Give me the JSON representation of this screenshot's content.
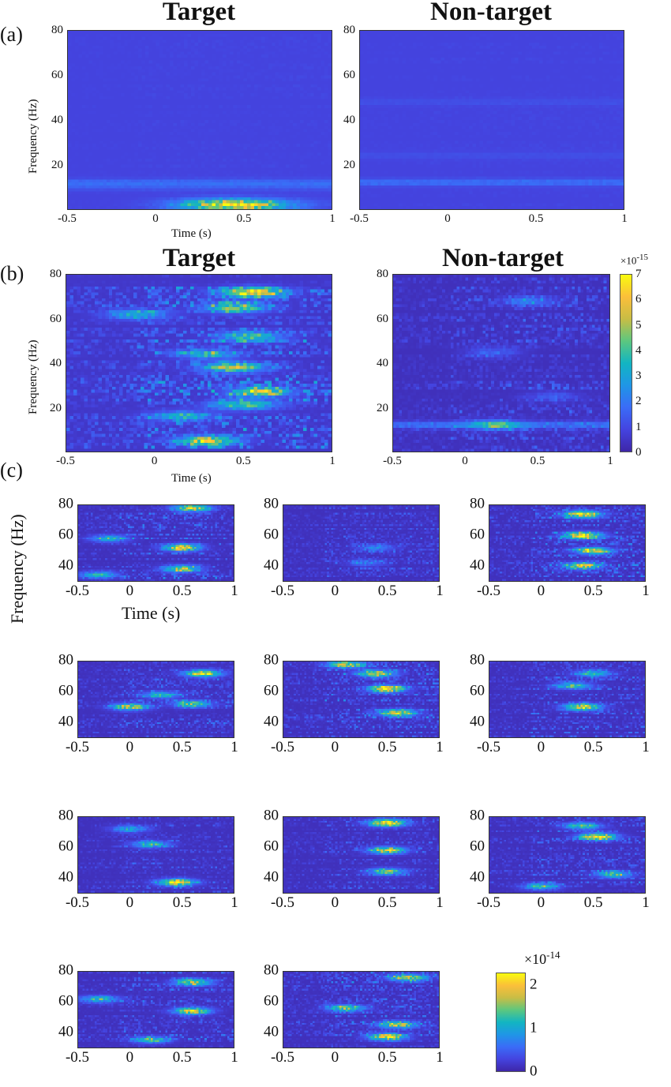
{
  "labels": {
    "a": "(a)",
    "b": "(b)",
    "c": "(c)",
    "freq": "Frequency (Hz)",
    "time": "Time (s)",
    "target": "Target",
    "nontarget": "Non-target"
  },
  "colors": {
    "parula": [
      "#3e26a8",
      "#4444e0",
      "#3a6cf7",
      "#1f96e6",
      "#12b5c2",
      "#5cc77f",
      "#c8bd45",
      "#fbbf3a",
      "#f9fb0e"
    ]
  },
  "chart_data": [
    {
      "id": "a-target",
      "type": "heatmap",
      "title": "Target",
      "xlabel": "Time (s)",
      "ylabel": "Frequency (Hz)",
      "xlim": [
        -0.5,
        1
      ],
      "ylim": [
        0,
        80
      ],
      "xticks": [
        "-0.5",
        "0",
        "0.5",
        "1"
      ],
      "yticks": [
        "20",
        "40",
        "60",
        "80"
      ],
      "clim": [
        0,
        1
      ],
      "base": 0.12,
      "noise": 0.02,
      "bands": [
        {
          "f": 12,
          "amp": 0.12
        },
        {
          "f": 10,
          "amp": 0.08
        }
      ],
      "peaks": [
        {
          "t": 0.45,
          "f": 2,
          "amp": 0.9,
          "tw": 0.3,
          "fw": 2.5
        }
      ]
    },
    {
      "id": "a-nontarget",
      "type": "heatmap",
      "title": "Non-target",
      "xlim": [
        -0.5,
        1
      ],
      "ylim": [
        0,
        80
      ],
      "xticks": [
        "-0.5",
        "0",
        "0.5",
        "1"
      ],
      "yticks": [
        "20",
        "40",
        "60",
        "80"
      ],
      "clim": [
        0,
        1
      ],
      "base": 0.12,
      "noise": 0.02,
      "bands": [
        {
          "f": 12,
          "amp": 0.14
        },
        {
          "f": 48,
          "amp": 0.04
        },
        {
          "f": 24,
          "amp": 0.04
        }
      ],
      "peaks": []
    },
    {
      "id": "b-target",
      "type": "heatmap",
      "title": "Target",
      "xlabel": "Time (s)",
      "ylabel": "Frequency (Hz)",
      "xlim": [
        -0.5,
        1
      ],
      "ylim": [
        0,
        80
      ],
      "xticks": [
        "-0.5",
        "0",
        "0.5",
        "1"
      ],
      "yticks": [
        "20",
        "40",
        "60",
        "80"
      ],
      "clim": [
        0,
        7
      ],
      "base": 0.5,
      "noise": 2.2,
      "bands": [],
      "peaks": [
        {
          "t": 0.55,
          "f": 72,
          "amp": 6
        },
        {
          "t": 0.45,
          "f": 65,
          "amp": 4.5
        },
        {
          "t": 0.55,
          "f": 52,
          "amp": 4
        },
        {
          "t": 0.45,
          "f": 38,
          "amp": 5
        },
        {
          "t": 0.6,
          "f": 27,
          "amp": 4.5
        },
        {
          "t": 0.5,
          "f": 21,
          "amp": 4
        },
        {
          "t": 0.15,
          "f": 16,
          "amp": 3
        },
        {
          "t": -0.1,
          "f": 62,
          "amp": 3
        },
        {
          "t": 0.3,
          "f": 5,
          "amp": 5
        },
        {
          "t": 0.3,
          "f": 44,
          "amp": 3
        }
      ]
    },
    {
      "id": "b-nontarget",
      "type": "heatmap",
      "title": "Non-target",
      "xlim": [
        -0.5,
        1
      ],
      "ylim": [
        0,
        80
      ],
      "xticks": [
        "-0.5",
        "0",
        "0.5",
        "1"
      ],
      "yticks": [
        "20",
        "40",
        "60",
        "80"
      ],
      "clim": [
        0,
        7
      ],
      "base": 0.3,
      "noise": 1.2,
      "bands": [
        {
          "f": 12,
          "amp": 1.5
        }
      ],
      "peaks": [
        {
          "t": 0.45,
          "f": 68,
          "amp": 1.8
        },
        {
          "t": 0.2,
          "f": 45,
          "amp": 1.5
        },
        {
          "t": 0.2,
          "f": 12,
          "amp": 3
        },
        {
          "t": 0.6,
          "f": 25,
          "amp": 1.2
        }
      ],
      "colorbar": {
        "ticks": [
          "0",
          "1",
          "2",
          "3",
          "4",
          "5",
          "6",
          "7"
        ],
        "exponent": "×10",
        "exp": "-15"
      }
    },
    {
      "id": "c1",
      "type": "heatmap",
      "xlabel": "Time (s)",
      "ylabel": "Frequency (Hz)",
      "xlim": [
        -0.5,
        1
      ],
      "ylim": [
        30,
        80
      ],
      "xticks": [
        "-0.5",
        "0",
        "0.5",
        "1"
      ],
      "yticks": [
        "40",
        "60",
        "80"
      ],
      "clim": [
        0,
        2.3
      ],
      "base": 0.1,
      "noise": 0.6,
      "bands": [],
      "peaks": [
        {
          "t": 0.5,
          "f": 52,
          "amp": 2.2
        },
        {
          "t": 0.6,
          "f": 78,
          "amp": 2
        },
        {
          "t": -0.2,
          "f": 58,
          "amp": 1.2
        },
        {
          "t": 0.5,
          "f": 38,
          "amp": 1.8
        },
        {
          "t": -0.3,
          "f": 34,
          "amp": 1.2
        }
      ]
    },
    {
      "id": "c2",
      "type": "heatmap",
      "xlim": [
        -0.5,
        1
      ],
      "ylim": [
        30,
        80
      ],
      "xticks": [
        "-0.5",
        "0",
        "0.5",
        "1"
      ],
      "yticks": [
        "40",
        "60",
        "80"
      ],
      "clim": [
        0,
        2.3
      ],
      "base": 0.1,
      "noise": 0.4,
      "bands": [],
      "peaks": [
        {
          "t": 0.4,
          "f": 52,
          "amp": 0.7
        },
        {
          "t": 0.3,
          "f": 42,
          "amp": 0.6
        }
      ]
    },
    {
      "id": "c3",
      "type": "heatmap",
      "xlim": [
        -0.5,
        1
      ],
      "ylim": [
        30,
        80
      ],
      "xticks": [
        "-0.5",
        "0",
        "0.5",
        "1"
      ],
      "yticks": [
        "40",
        "60",
        "80"
      ],
      "clim": [
        0,
        2.3
      ],
      "base": 0.1,
      "noise": 0.6,
      "bands": [],
      "peaks": [
        {
          "t": 0.4,
          "f": 60,
          "amp": 2.3
        },
        {
          "t": 0.4,
          "f": 74,
          "amp": 2
        },
        {
          "t": 0.5,
          "f": 50,
          "amp": 1.8
        },
        {
          "t": 0.4,
          "f": 40,
          "amp": 1.8
        }
      ]
    },
    {
      "id": "c4",
      "type": "heatmap",
      "xlim": [
        -0.5,
        1
      ],
      "ylim": [
        30,
        80
      ],
      "xticks": [
        "-0.5",
        "0",
        "0.5",
        "1"
      ],
      "yticks": [
        "40",
        "60",
        "80"
      ],
      "clim": [
        0,
        2.3
      ],
      "base": 0.1,
      "noise": 0.5,
      "bands": [],
      "peaks": [
        {
          "t": 0.7,
          "f": 72,
          "amp": 2
        },
        {
          "t": 0.0,
          "f": 50,
          "amp": 1.8
        },
        {
          "t": 0.6,
          "f": 52,
          "amp": 1.5
        },
        {
          "t": 0.3,
          "f": 58,
          "amp": 1.2
        }
      ]
    },
    {
      "id": "c5",
      "type": "heatmap",
      "xlim": [
        -0.5,
        1
      ],
      "ylim": [
        30,
        80
      ],
      "xticks": [
        "-0.5",
        "0",
        "0.5",
        "1"
      ],
      "yticks": [
        "40",
        "60",
        "80"
      ],
      "clim": [
        0,
        2.3
      ],
      "base": 0.1,
      "noise": 0.6,
      "bands": [],
      "peaks": [
        {
          "t": 0.5,
          "f": 62,
          "amp": 2.3
        },
        {
          "t": 0.1,
          "f": 78,
          "amp": 1.8
        },
        {
          "t": 0.6,
          "f": 46,
          "amp": 2
        },
        {
          "t": 0.4,
          "f": 72,
          "amp": 1.8
        }
      ]
    },
    {
      "id": "c6",
      "type": "heatmap",
      "xlim": [
        -0.5,
        1
      ],
      "ylim": [
        30,
        80
      ],
      "xticks": [
        "-0.5",
        "0",
        "0.5",
        "1"
      ],
      "yticks": [
        "40",
        "60",
        "80"
      ],
      "clim": [
        0,
        2.3
      ],
      "base": 0.1,
      "noise": 0.5,
      "bands": [],
      "peaks": [
        {
          "t": 0.4,
          "f": 50,
          "amp": 2
        },
        {
          "t": 0.3,
          "f": 64,
          "amp": 1.3
        },
        {
          "t": 0.5,
          "f": 72,
          "amp": 1.2
        }
      ]
    },
    {
      "id": "c7",
      "type": "heatmap",
      "xlim": [
        -0.5,
        1
      ],
      "ylim": [
        30,
        80
      ],
      "xticks": [
        "-0.5",
        "0",
        "0.5",
        "1"
      ],
      "yticks": [
        "40",
        "60",
        "80"
      ],
      "clim": [
        0,
        2.3
      ],
      "base": 0.1,
      "noise": 0.4,
      "bands": [],
      "peaks": [
        {
          "t": 0.45,
          "f": 37,
          "amp": 2.2
        },
        {
          "t": 0.2,
          "f": 62,
          "amp": 1.2
        },
        {
          "t": 0.0,
          "f": 72,
          "amp": 1
        }
      ]
    },
    {
      "id": "c8",
      "type": "heatmap",
      "xlim": [
        -0.5,
        1
      ],
      "ylim": [
        30,
        80
      ],
      "xticks": [
        "-0.5",
        "0",
        "0.5",
        "1"
      ],
      "yticks": [
        "40",
        "60",
        "80"
      ],
      "clim": [
        0,
        2.3
      ],
      "base": 0.1,
      "noise": 0.4,
      "bands": [],
      "peaks": [
        {
          "t": 0.5,
          "f": 76,
          "amp": 2.3
        },
        {
          "t": 0.5,
          "f": 58,
          "amp": 2
        },
        {
          "t": 0.5,
          "f": 44,
          "amp": 1.5
        }
      ]
    },
    {
      "id": "c9",
      "type": "heatmap",
      "xlim": [
        -0.5,
        1
      ],
      "ylim": [
        30,
        80
      ],
      "xticks": [
        "-0.5",
        "0",
        "0.5",
        "1"
      ],
      "yticks": [
        "40",
        "60",
        "80"
      ],
      "clim": [
        0,
        2.3
      ],
      "base": 0.1,
      "noise": 0.5,
      "bands": [],
      "peaks": [
        {
          "t": 0.55,
          "f": 67,
          "amp": 2.3
        },
        {
          "t": 0.4,
          "f": 74,
          "amp": 1.3
        },
        {
          "t": 0.0,
          "f": 34,
          "amp": 1.2
        },
        {
          "t": 0.7,
          "f": 42,
          "amp": 1.2
        }
      ]
    },
    {
      "id": "c10",
      "type": "heatmap",
      "xlim": [
        -0.5,
        1
      ],
      "ylim": [
        30,
        80
      ],
      "xticks": [
        "-0.5",
        "0",
        "0.5",
        "1"
      ],
      "yticks": [
        "40",
        "60",
        "80"
      ],
      "clim": [
        0,
        2.3
      ],
      "base": 0.1,
      "noise": 0.5,
      "bands": [],
      "peaks": [
        {
          "t": 0.6,
          "f": 54,
          "amp": 2
        },
        {
          "t": 0.6,
          "f": 73,
          "amp": 1.7
        },
        {
          "t": -0.3,
          "f": 62,
          "amp": 1.3
        },
        {
          "t": 0.2,
          "f": 35,
          "amp": 1.2
        }
      ]
    },
    {
      "id": "c11",
      "type": "heatmap",
      "xlim": [
        -0.5,
        1
      ],
      "ylim": [
        30,
        80
      ],
      "xticks": [
        "-0.5",
        "0",
        "0.5",
        "1"
      ],
      "yticks": [
        "40",
        "60",
        "80"
      ],
      "clim": [
        0,
        2.3
      ],
      "base": 0.1,
      "noise": 0.6,
      "bands": [],
      "peaks": [
        {
          "t": 0.5,
          "f": 37,
          "amp": 2.2
        },
        {
          "t": 0.6,
          "f": 45,
          "amp": 1.8
        },
        {
          "t": 0.7,
          "f": 76,
          "amp": 1.7
        },
        {
          "t": 0.1,
          "f": 56,
          "amp": 1.5
        }
      ]
    }
  ],
  "colorbar_c": {
    "ticks": [
      "0",
      "1",
      "2"
    ],
    "max": 2.3,
    "exponent": "×10",
    "exp": "-14"
  }
}
